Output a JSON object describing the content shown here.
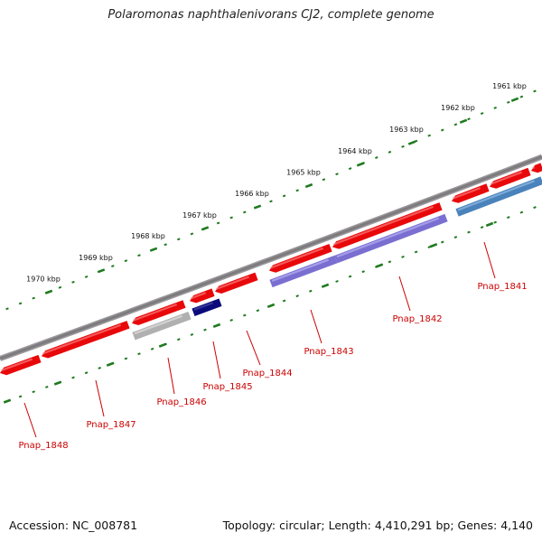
{
  "title": "Polaromonas naphthalenivorans CJ2, complete genome",
  "footer": {
    "accession": "Accession: NC_008781",
    "summary": "Topology: circular; Length: 4,410,291 bp; Genes: 4,140"
  },
  "colors": {
    "backbone": "#7d7b7e",
    "tick": "#1f7a1f",
    "label": "#cc0000",
    "cds_red": "#e8080a",
    "cds_gray": "#b0b0b0",
    "cds_navy": "#0a0a7a",
    "cds_purple": "#7a6fd0",
    "cds_steelblue": "#4a82bb"
  },
  "scale_labels": [
    "1961 kbp",
    "1962 kbp",
    "1963 kbp",
    "1964 kbp",
    "1965 kbp",
    "1966 kbp",
    "1967 kbp",
    "1968 kbp",
    "1969 kbp",
    "1970 kbp"
  ],
  "gene_labels": [
    "Pnap_1841",
    "Pnap_1842",
    "Pnap_1843",
    "Pnap_1844",
    "Pnap_1845",
    "Pnap_1846",
    "Pnap_1847",
    "Pnap_1848"
  ]
}
